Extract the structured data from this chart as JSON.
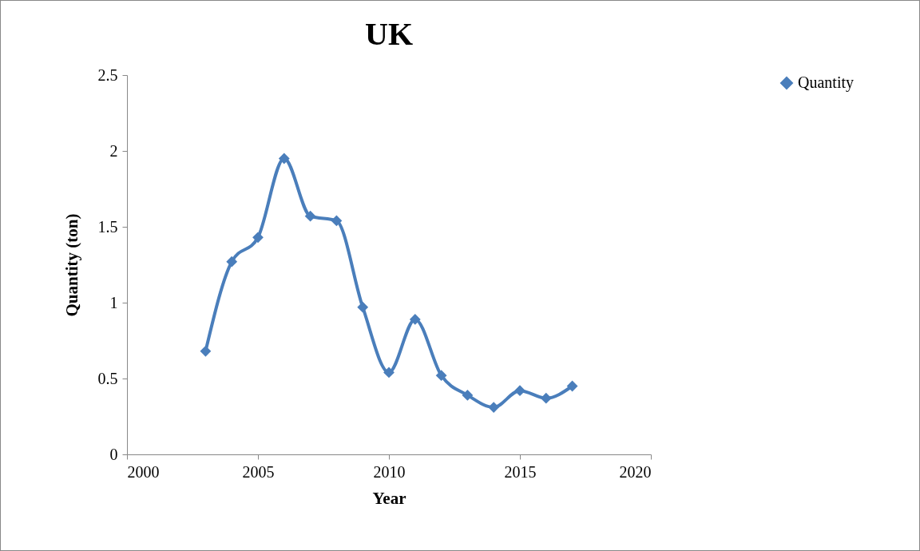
{
  "chart_data": {
    "type": "line",
    "title": "UK",
    "xlabel": "Year",
    "ylabel": "Quantity (ton)",
    "x": [
      2003,
      2004,
      2005,
      2006,
      2007,
      2008,
      2009,
      2010,
      2011,
      2012,
      2013,
      2014,
      2015,
      2016,
      2017
    ],
    "series": [
      {
        "name": "Quantity",
        "color": "#4a7ebb",
        "values": [
          0.68,
          1.27,
          1.43,
          1.95,
          1.57,
          1.54,
          0.97,
          0.54,
          0.89,
          0.52,
          0.39,
          0.31,
          0.42,
          0.37,
          0.45
        ]
      }
    ],
    "xlim": [
      2000,
      2020
    ],
    "xticks": [
      2000,
      2005,
      2010,
      2015,
      2020
    ],
    "ylim": [
      0,
      2.5
    ],
    "yticks": [
      0,
      0.5,
      1,
      1.5,
      2,
      2.5
    ],
    "grid": false,
    "legend": "right",
    "marker": "diamond",
    "line_style": "solid"
  }
}
